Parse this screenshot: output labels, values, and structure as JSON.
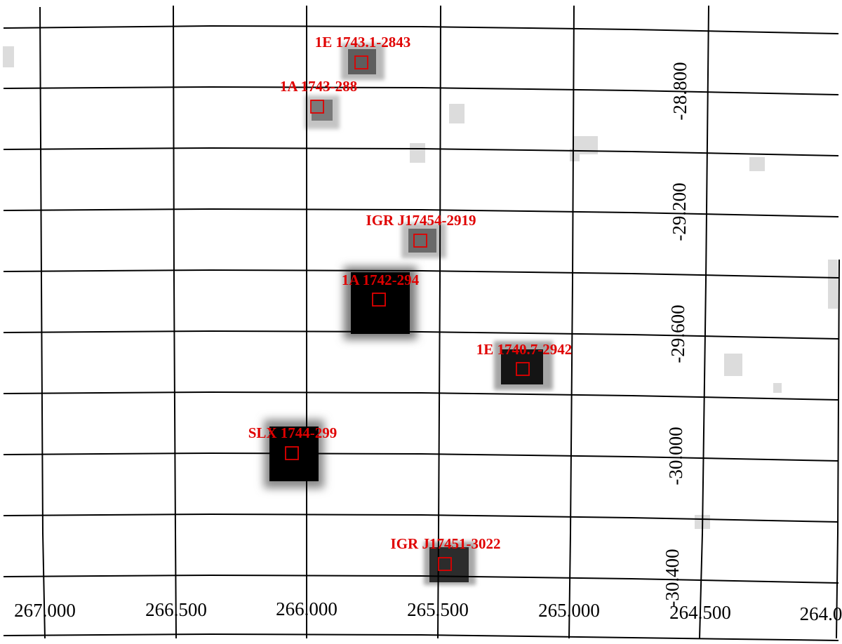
{
  "image": {
    "background_color": "#ffffff",
    "grid_color": "#000000",
    "label_color": "#e00000"
  },
  "ra_labels": [
    "267.000",
    "266.500",
    "266.000",
    "265.500",
    "265.000",
    "264.500",
    "264.0"
  ],
  "dec_labels": [
    "-28.800",
    "-29.200",
    "-29.600",
    "-30.000",
    "-30.400"
  ],
  "sources": [
    {
      "name": "1E 1743.1-2843",
      "ra": 265.76,
      "dec": -28.73
    },
    {
      "name": "1A 1743-288",
      "ra": 265.92,
      "dec": -28.87
    },
    {
      "name": "IGR J17454-2919",
      "ra": 265.36,
      "dec": -29.33
    },
    {
      "name": "1A 1742-294",
      "ra": 265.72,
      "dec": -29.51
    },
    {
      "name": "1E 1740.7-2942",
      "ra": 264.98,
      "dec": -29.72
    },
    {
      "name": "SLX 1744-299",
      "ra": 266.05,
      "dec": -30.0
    },
    {
      "name": "IGR J17451-3022",
      "ra": 265.31,
      "dec": -30.37
    }
  ]
}
